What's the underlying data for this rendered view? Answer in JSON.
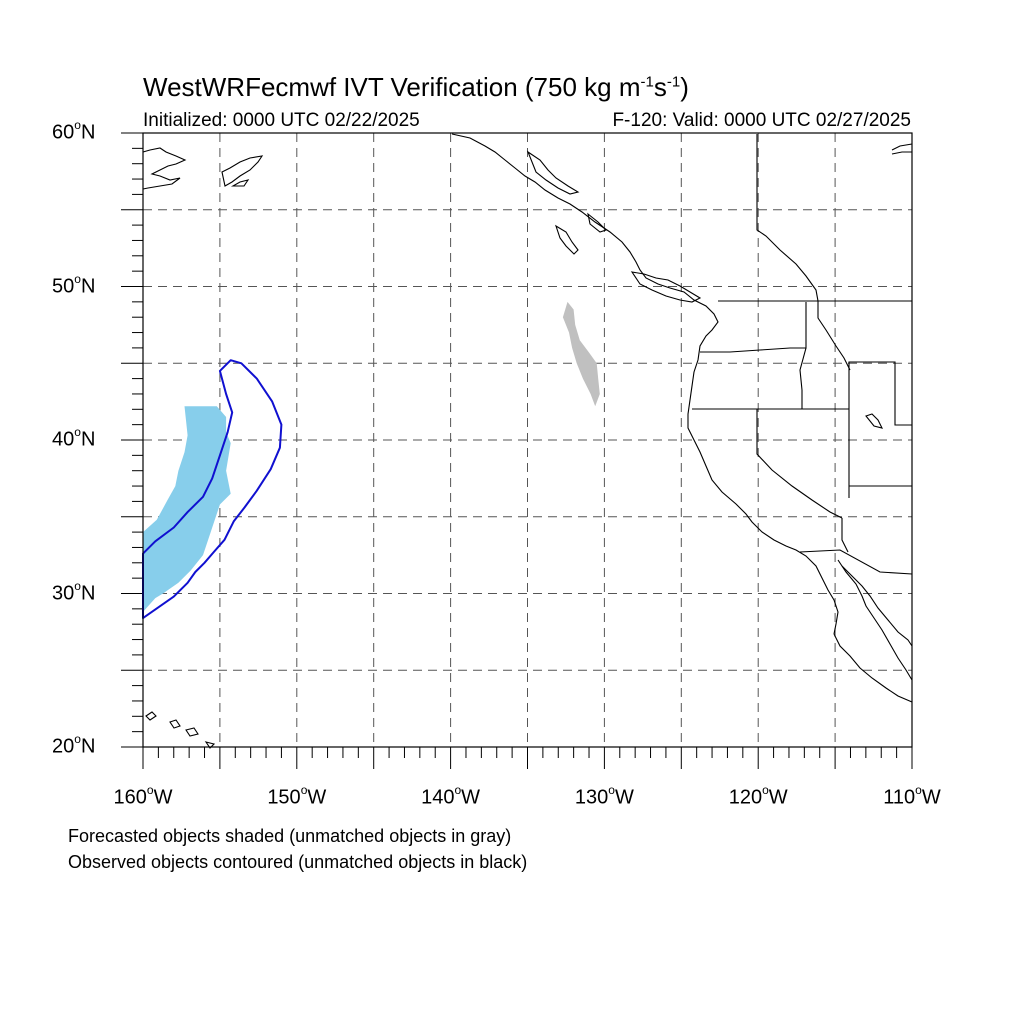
{
  "title": {
    "prefix": "WestWRFecmwf IVT Verification (750 kg m",
    "exp1": "-1",
    "mid": "s",
    "exp2": "-1",
    "suffix": ")"
  },
  "initialized": "Initialized: 0000 UTC 02/22/2025",
  "valid": "F-120: Valid: 0000 UTC 02/27/2025",
  "lat_labels": [
    {
      "value": "60",
      "suffix": "N"
    },
    {
      "value": "50",
      "suffix": "N"
    },
    {
      "value": "40",
      "suffix": "N"
    },
    {
      "value": "30",
      "suffix": "N"
    },
    {
      "value": "20",
      "suffix": "N"
    }
  ],
  "lon_labels": [
    {
      "value": "160",
      "suffix": "W"
    },
    {
      "value": "150",
      "suffix": "W"
    },
    {
      "value": "140",
      "suffix": "W"
    },
    {
      "value": "130",
      "suffix": "W"
    },
    {
      "value": "120",
      "suffix": "W"
    },
    {
      "value": "110",
      "suffix": "W"
    }
  ],
  "degree_symbol": "o",
  "notes": {
    "line1": "Forecasted objects shaded (unmatched objects in gray)",
    "line2": "Observed objects contoured (unmatched objects in black)"
  },
  "map_extent": {
    "lon_min": -160,
    "lon_max": -110,
    "lat_min": 20,
    "lat_max": 60
  },
  "colors": {
    "matched_forecast_fill": "#87ceeb",
    "unmatched_forecast_fill": "#c0c0c0",
    "observed_contour": "#1010d0",
    "coastline": "#000000",
    "grid": "#555555"
  },
  "objects": {
    "forecast_matched": [
      [
        -157.3,
        42.2
      ],
      [
        -155.2,
        42.2
      ],
      [
        -154.6,
        41.5
      ],
      [
        -154.6,
        40.5
      ],
      [
        -154.3,
        39.8
      ],
      [
        -154.6,
        38.0
      ],
      [
        -154.3,
        36.5
      ],
      [
        -155.0,
        35.8
      ],
      [
        -155.6,
        34.0
      ],
      [
        -156.1,
        32.5
      ],
      [
        -156.9,
        31.5
      ],
      [
        -157.7,
        30.7
      ],
      [
        -158.7,
        30.0
      ],
      [
        -159.2,
        29.7
      ],
      [
        -160.0,
        28.8
      ],
      [
        -160.0,
        34.0
      ],
      [
        -159.1,
        34.8
      ],
      [
        -158.4,
        36.1
      ],
      [
        -157.9,
        37.0
      ],
      [
        -157.7,
        38.0
      ],
      [
        -157.3,
        39.2
      ],
      [
        -157.1,
        40.3
      ]
    ],
    "forecast_unmatched": [
      [
        -132.4,
        49.0
      ],
      [
        -132.0,
        48.5
      ],
      [
        -131.9,
        47.5
      ],
      [
        -131.6,
        46.5
      ],
      [
        -131.0,
        45.7
      ],
      [
        -130.5,
        45.0
      ],
      [
        -130.4,
        44.0
      ],
      [
        -130.3,
        43.0
      ],
      [
        -130.6,
        42.2
      ],
      [
        -130.9,
        43.0
      ],
      [
        -131.4,
        44.0
      ],
      [
        -131.8,
        45.0
      ],
      [
        -132.1,
        46.0
      ],
      [
        -132.3,
        47.0
      ],
      [
        -132.7,
        48.0
      ]
    ],
    "observed_contour": [
      [
        -154.3,
        45.2
      ],
      [
        -153.6,
        45.0
      ],
      [
        -152.6,
        44.0
      ],
      [
        -151.6,
        42.5
      ],
      [
        -151.0,
        41.0
      ],
      [
        -151.1,
        39.5
      ],
      [
        -151.7,
        38.1
      ],
      [
        -152.6,
        36.7
      ],
      [
        -153.4,
        35.6
      ],
      [
        -154.1,
        34.7
      ],
      [
        -154.7,
        33.5
      ],
      [
        -155.4,
        32.7
      ],
      [
        -156.0,
        32.0
      ],
      [
        -156.6,
        31.4
      ],
      [
        -157.1,
        30.7
      ],
      [
        -158.0,
        29.8
      ],
      [
        -159.0,
        29.1
      ],
      [
        -160.0,
        28.4
      ],
      [
        -160.0,
        32.6
      ],
      [
        -159.2,
        33.4
      ],
      [
        -158.0,
        34.3
      ],
      [
        -157.1,
        35.3
      ],
      [
        -156.1,
        36.3
      ],
      [
        -155.5,
        37.5
      ],
      [
        -155.0,
        39.0
      ],
      [
        -154.5,
        40.5
      ],
      [
        -154.2,
        41.8
      ],
      [
        -154.6,
        43.0
      ],
      [
        -155.0,
        44.5
      ]
    ]
  }
}
